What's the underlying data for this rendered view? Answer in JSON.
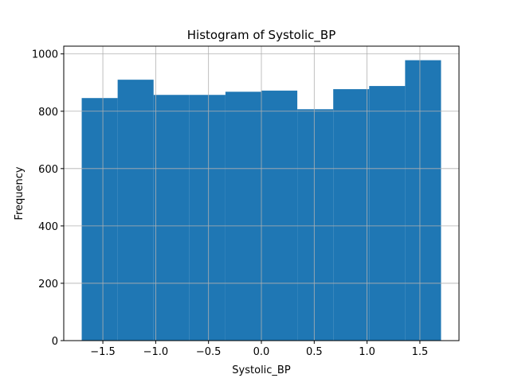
{
  "chart_data": {
    "type": "bar",
    "title": "Histogram of Systolic_BP",
    "xlabel": "Systolic_BP",
    "ylabel": "Frequency",
    "bins": [
      {
        "x0": -1.7,
        "x1": -1.36,
        "count": 846
      },
      {
        "x0": -1.36,
        "x1": -1.02,
        "count": 910
      },
      {
        "x0": -1.02,
        "x1": -0.68,
        "count": 857
      },
      {
        "x0": -0.68,
        "x1": -0.34,
        "count": 857
      },
      {
        "x0": -0.34,
        "x1": 0.0,
        "count": 868
      },
      {
        "x0": 0.0,
        "x1": 0.34,
        "count": 872
      },
      {
        "x0": 0.34,
        "x1": 0.68,
        "count": 807
      },
      {
        "x0": 0.68,
        "x1": 1.02,
        "count": 877
      },
      {
        "x0": 1.02,
        "x1": 1.36,
        "count": 888
      },
      {
        "x0": 1.36,
        "x1": 1.7,
        "count": 978
      }
    ],
    "xlim": [
      -1.87,
      1.87
    ],
    "ylim": [
      0,
      1027
    ],
    "xticks": [
      -1.5,
      -1.0,
      -0.5,
      0.0,
      0.5,
      1.0,
      1.5
    ],
    "xtick_labels": [
      "−1.5",
      "−1.0",
      "−0.5",
      "0.0",
      "0.5",
      "1.0",
      "1.5"
    ],
    "yticks": [
      0,
      200,
      400,
      600,
      800,
      1000
    ],
    "ytick_labels": [
      "0",
      "200",
      "400",
      "600",
      "800",
      "1000"
    ],
    "grid": true,
    "bar_color": "#1f77b4",
    "grid_color": "#b0b0b0"
  }
}
